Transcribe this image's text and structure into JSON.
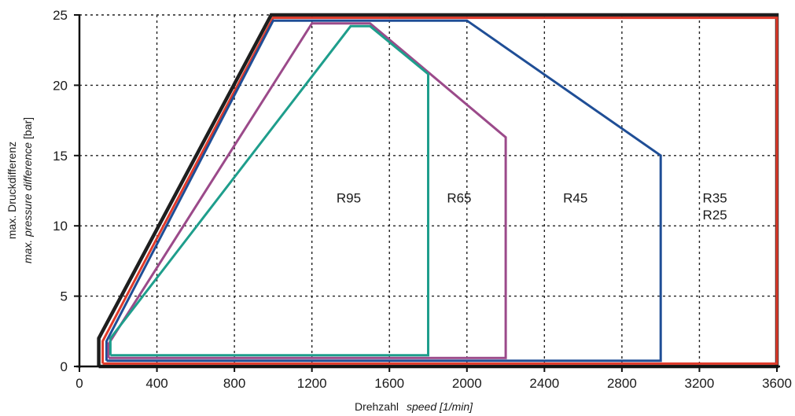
{
  "chart_data": {
    "type": "line",
    "title": "",
    "xlabel": {
      "de": "Drehzahl",
      "en": "speed [1/min]"
    },
    "ylabel": {
      "de": "max. Druckdifferenz",
      "en": "max. pressure difference",
      "unit": "[bar]"
    },
    "xlim": [
      0,
      3600
    ],
    "ylim": [
      0,
      25
    ],
    "xticks": [
      "0",
      "400",
      "800",
      "1200",
      "1600",
      "2000",
      "2400",
      "2800",
      "3200",
      "3600"
    ],
    "yticks": [
      "0",
      "5",
      "10",
      "15",
      "20",
      "25"
    ],
    "grid": true,
    "series": [
      {
        "name": "R35 R25",
        "color": "#1e1e1e",
        "x": [
          100,
          100,
          990,
          3600,
          3600,
          100
        ],
        "y": [
          0,
          2,
          25,
          25,
          0,
          0
        ]
      },
      {
        "name": "R35 R25",
        "color": "#e03a2a",
        "x": [
          120,
          120,
          1000,
          3600,
          3600,
          120
        ],
        "y": [
          0.2,
          1.8,
          24.8,
          24.8,
          0.2,
          0.2
        ]
      },
      {
        "name": "R45",
        "color": "#1f4e96",
        "x": [
          140,
          140,
          1000,
          2000,
          3000,
          3000,
          140
        ],
        "y": [
          0.4,
          1.8,
          24.6,
          24.6,
          15,
          0.4,
          0.4
        ]
      },
      {
        "name": "R65",
        "color": "#9b4a8a",
        "x": [
          150,
          150,
          1200,
          1500,
          2200,
          2200,
          150
        ],
        "y": [
          0.6,
          1.6,
          24.4,
          24.4,
          16.3,
          0.6,
          0.6
        ]
      },
      {
        "name": "R95",
        "color": "#1e9e8c",
        "x": [
          160,
          160,
          1400,
          1500,
          1800,
          1800,
          160
        ],
        "y": [
          0.8,
          2,
          24.2,
          24.2,
          20.8,
          0.8,
          0.8
        ]
      }
    ],
    "annotations": [
      {
        "text": "R95",
        "x": 1390,
        "y": 12
      },
      {
        "text": "R65",
        "x": 1960,
        "y": 12
      },
      {
        "text": "R45",
        "x": 2560,
        "y": 12
      },
      {
        "text": "R35",
        "x": 3280,
        "y": 12
      },
      {
        "text": "R25",
        "x": 3280,
        "y": 10.8
      }
    ]
  }
}
